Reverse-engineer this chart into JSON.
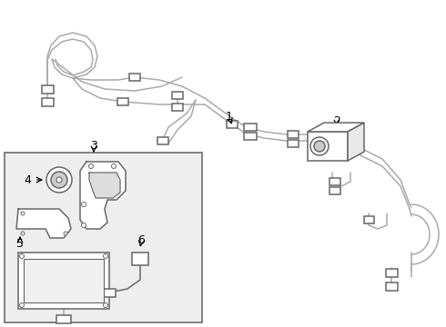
{
  "bg_color": "#ffffff",
  "line_color": "#aaaaaa",
  "dark_line": "#666666",
  "box_bg": "#eeeeee",
  "label_color": "#000000",
  "figsize": [
    4.9,
    3.6
  ],
  "dpi": 100
}
